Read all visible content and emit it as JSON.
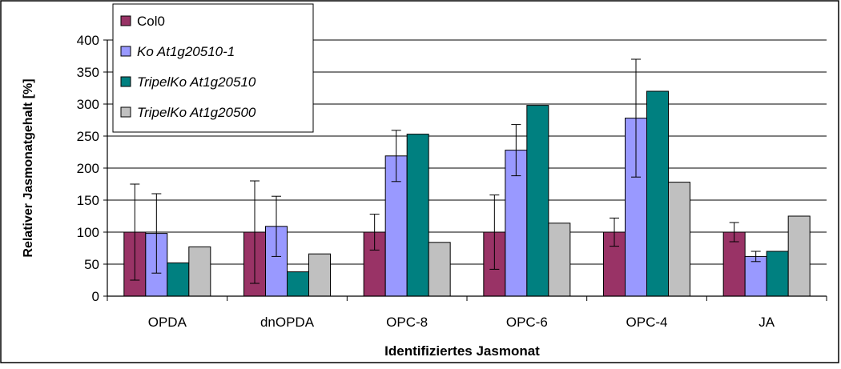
{
  "chart_data": {
    "type": "bar",
    "title": "",
    "xlabel": "Identifiziertes Jasmonat",
    "ylabel": "Relativer Jasmonatgehalt [%]",
    "ylim": [
      0,
      400
    ],
    "yticks": [
      0,
      50,
      100,
      150,
      200,
      250,
      300,
      350,
      400
    ],
    "grid": true,
    "legend_position": "top-left",
    "categories": [
      "OPDA",
      "dnOPDA",
      "OPC-8",
      "OPC-6",
      "OPC-4",
      "JA"
    ],
    "series": [
      {
        "name": "Col0",
        "italic": false,
        "color": "#993366",
        "values": [
          100,
          100,
          100,
          100,
          100,
          100
        ],
        "errors": [
          75,
          80,
          28,
          58,
          22,
          15
        ]
      },
      {
        "name": "Ko At1g20510-1",
        "italic": true,
        "color": "#9999ff",
        "values": [
          98,
          109,
          219,
          228,
          278,
          62
        ],
        "errors": [
          62,
          47,
          40,
          40,
          92,
          8
        ]
      },
      {
        "name": "TripelKo At1g20510",
        "italic": true,
        "color": "#008080",
        "values": [
          52,
          38,
          253,
          298,
          320,
          70
        ],
        "errors": null
      },
      {
        "name": "TripelKo At1g20500",
        "italic": true,
        "color": "#c0c0c0",
        "values": [
          77,
          66,
          84,
          114,
          178,
          125
        ],
        "errors": null
      }
    ]
  }
}
